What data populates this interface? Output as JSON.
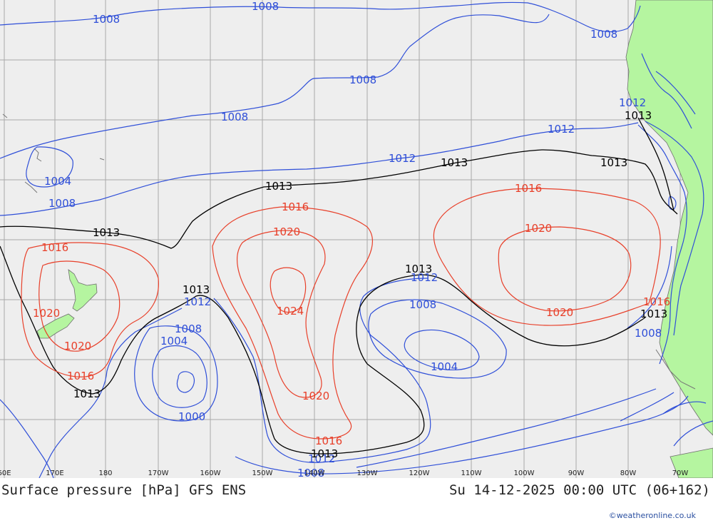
{
  "title_left": "Surface pressure [hPa] GFS ENS",
  "title_right": "Su 14-12-2025 00:00 UTC (06+162)",
  "credit": "©weatheronline.co.uk",
  "longitude_ticks": [
    "60E",
    "170E",
    "180",
    "170W",
    "160W",
    "150W",
    "140W",
    "130W",
    "120W",
    "110W",
    "100W",
    "90W",
    "80W",
    "70W"
  ],
  "colors": {
    "background": "#eeeeee",
    "land": "#b5f5a0",
    "isobar_low": "#2f4fd8",
    "isobar_ref": "#000000",
    "isobar_high": "#e8402a",
    "grid": "#a8a8a8"
  },
  "labels": {
    "l1008a": "1008",
    "l1008b": "1008",
    "l1008c": "1008",
    "l1008d": "1008",
    "l1008e": "1008",
    "l1004a": "1004",
    "l1008f": "1008",
    "l1012a": "1012",
    "l1012b": "1012",
    "l1012c": "1012",
    "l1013a": "1013",
    "l1013b": "1013",
    "l1013c": "1013",
    "l1013d": "1013",
    "l1013e": "1013",
    "l1016a": "1016",
    "l1016b": "1016",
    "l1016c": "1016",
    "l1020a": "1020",
    "l1020b": "1020",
    "l1020c": "1020",
    "l1024": "1024",
    "l1013f": "1013",
    "l1012d": "1012",
    "l1008g": "1008",
    "l1004b": "1004",
    "l1000": "1000",
    "l1020d": "1020",
    "l1016d": "1016",
    "l1013g": "1013",
    "l1012e": "1012",
    "l1008h": "1008",
    "l1013h": "1013",
    "l1012f": "1012",
    "l1008i": "1008",
    "l1004c": "1004",
    "l1020e": "1020",
    "l1016e": "1016",
    "l1020f": "1020",
    "l1016f": "1016",
    "l1013i": "1013",
    "l1008j": "1008",
    "l1013j": "1013",
    "l1012g": "1012",
    "l1008k": "1008",
    "l1020g": "1020"
  }
}
